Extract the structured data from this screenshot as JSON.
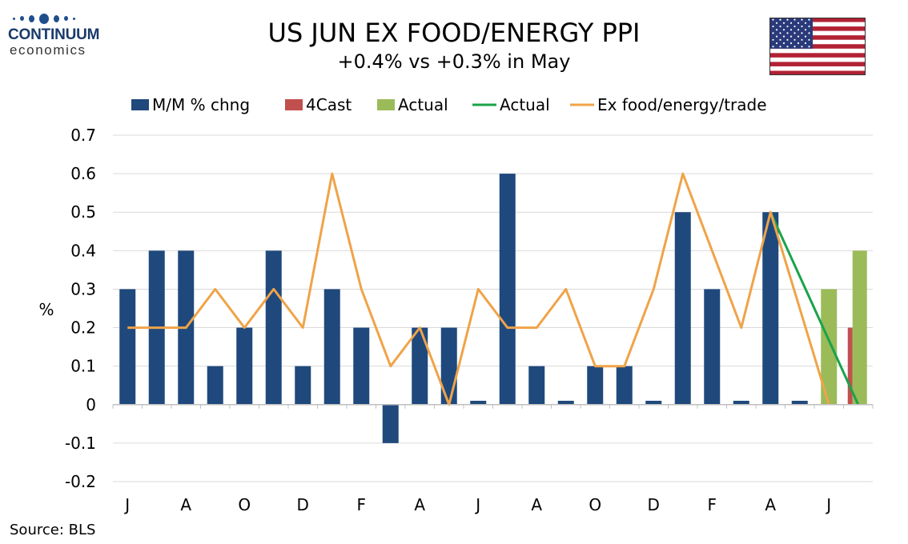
{
  "logo": {
    "name": "CONTINUUM",
    "sub": "economics"
  },
  "header": {
    "title": "US JUN EX FOOD/ENERGY PPI",
    "subtitle": "+0.4% vs +0.3% in May",
    "flag_icon": "us-flag-icon"
  },
  "source": "Source: BLS",
  "colors": {
    "mm": "#1f497d",
    "forecast": "#c0504d",
    "actual_bar": "#9bbb59",
    "actual_line": "#1aa34a",
    "ex_trade": "#f0a348",
    "grid": "#d9d9d9"
  },
  "chart_data": {
    "type": "bar",
    "title": "US JUN EX FOOD/ENERGY PPI",
    "subtitle": "+0.4% vs +0.3% in May",
    "ylabel": "%",
    "xlabel": "",
    "ylim": [
      -0.2,
      0.7
    ],
    "yticks": [
      "0.7",
      "0.6",
      "0.5",
      "0.4",
      "0.3",
      "0.2",
      "0.1",
      "0",
      "-0.1",
      "-0.2"
    ],
    "grid": true,
    "legend_position": "top",
    "x_tick_labels": [
      "J",
      "A",
      "O",
      "D",
      "F",
      "A",
      "J",
      "A",
      "O",
      "D",
      "F",
      "A",
      "J"
    ],
    "legend": [
      "M/M % chng",
      "4Cast",
      "Actual",
      "Actual",
      "Ex food/energy/trade"
    ],
    "series": [
      {
        "name": "M/M % chng",
        "kind": "bar",
        "values": [
          0.3,
          0.4,
          0.4,
          0.1,
          0.2,
          0.4,
          0.1,
          0.3,
          0.2,
          -0.1,
          0.2,
          0.2,
          0.01,
          0.6,
          0.1,
          0.01,
          0.1,
          0.1,
          0.01,
          0.5,
          0.3,
          0.01,
          0.5,
          0.01,
          null,
          null
        ]
      },
      {
        "name": "4Cast",
        "kind": "bar",
        "values": [
          null,
          null,
          null,
          null,
          null,
          null,
          null,
          null,
          null,
          null,
          null,
          null,
          null,
          null,
          null,
          null,
          null,
          null,
          null,
          null,
          null,
          null,
          null,
          null,
          null,
          0.2
        ]
      },
      {
        "name": "Actual",
        "kind": "bar",
        "values": [
          null,
          null,
          null,
          null,
          null,
          null,
          null,
          null,
          null,
          null,
          null,
          null,
          null,
          null,
          null,
          null,
          null,
          null,
          null,
          null,
          null,
          null,
          null,
          null,
          0.3,
          0.4
        ]
      },
      {
        "name": "Actual",
        "kind": "line",
        "values": [
          null,
          null,
          null,
          null,
          null,
          null,
          null,
          null,
          null,
          null,
          null,
          null,
          null,
          null,
          null,
          null,
          null,
          null,
          null,
          null,
          null,
          null,
          0.5,
          null,
          null,
          0.0
        ]
      },
      {
        "name": "Ex food/energy/trade",
        "kind": "line",
        "values": [
          0.2,
          0.2,
          0.2,
          0.3,
          0.2,
          0.3,
          0.2,
          0.6,
          0.3,
          0.1,
          0.2,
          0.0,
          0.3,
          0.2,
          0.2,
          0.3,
          0.1,
          0.1,
          0.3,
          0.6,
          0.4,
          0.2,
          0.5,
          null,
          0.0,
          null
        ]
      }
    ]
  }
}
